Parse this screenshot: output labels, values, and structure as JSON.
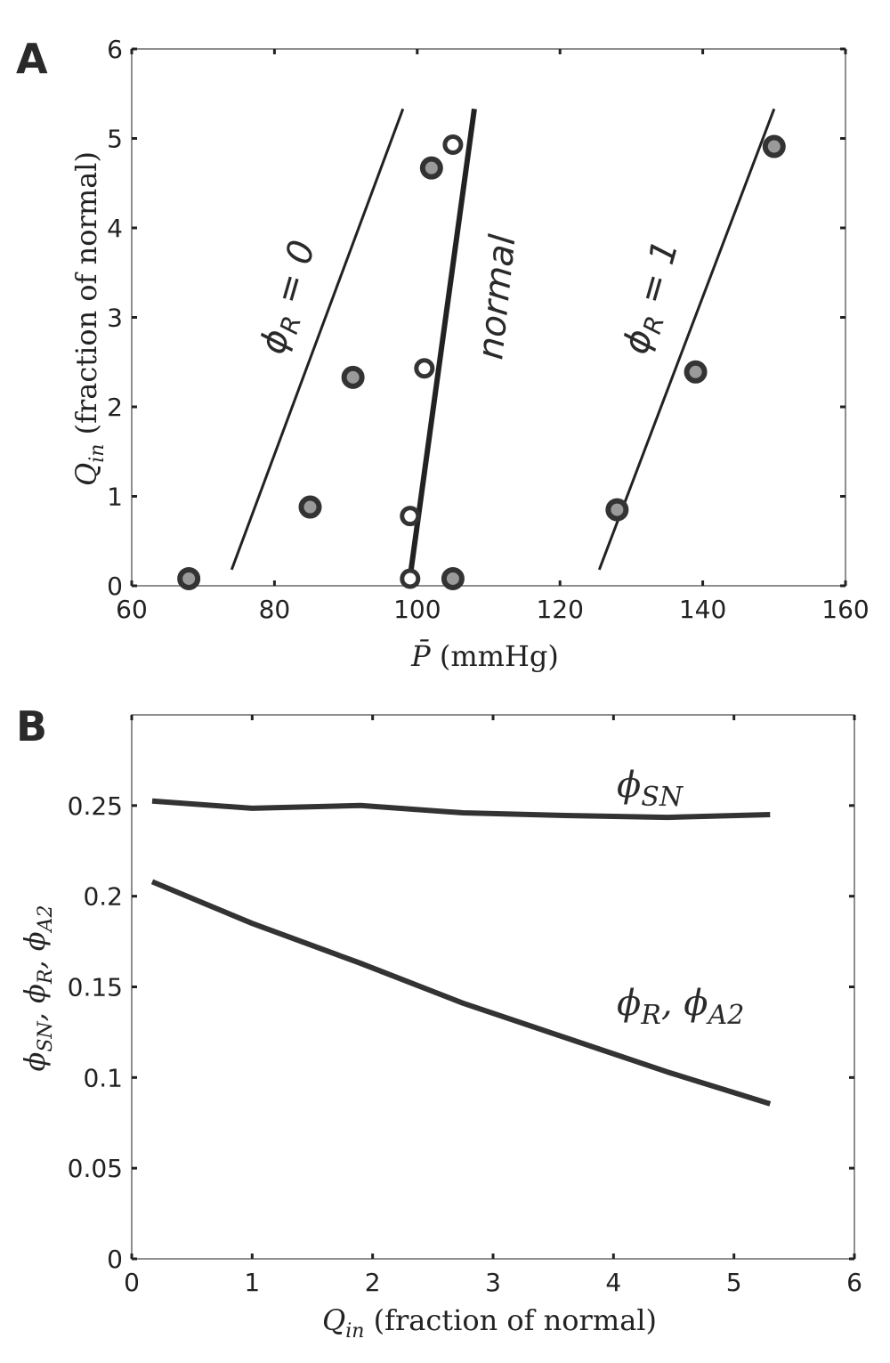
{
  "chart_data": [
    {
      "panel": "A",
      "type": "scatter",
      "xlabel": "P̄ (mmHg)",
      "ylabel": "Q_in (fraction of normal)",
      "xlim": [
        60,
        160
      ],
      "ylim": [
        0,
        6
      ],
      "xticks": [
        60,
        80,
        100,
        120,
        140,
        160
      ],
      "yticks": [
        0,
        1,
        2,
        3,
        4,
        5,
        6
      ],
      "grid": false,
      "lines": [
        {
          "name": "ϕR = 0",
          "style": "thin",
          "points": [
            [
              74,
              0.18
            ],
            [
              98,
              5.33
            ]
          ]
        },
        {
          "name": "normal",
          "style": "thick",
          "points": [
            [
              99,
              0.1
            ],
            [
              108,
              5.33
            ]
          ]
        },
        {
          "name": "ϕR = 1",
          "style": "thin",
          "points": [
            [
              125.5,
              0.18
            ],
            [
              150,
              5.33
            ]
          ]
        }
      ],
      "points_filled": [
        {
          "x": 68,
          "y": 0.08
        },
        {
          "x": 85,
          "y": 0.88
        },
        {
          "x": 91,
          "y": 2.33
        },
        {
          "x": 105,
          "y": 0.08
        },
        {
          "x": 102,
          "y": 4.67
        },
        {
          "x": 128,
          "y": 0.85
        },
        {
          "x": 139,
          "y": 2.39
        },
        {
          "x": 150,
          "y": 4.91
        }
      ],
      "points_open": [
        {
          "x": 99,
          "y": 0.08
        },
        {
          "x": 99,
          "y": 0.78
        },
        {
          "x": 101,
          "y": 2.43
        },
        {
          "x": 105,
          "y": 4.93
        }
      ]
    },
    {
      "panel": "B",
      "type": "line",
      "xlabel": "Q_in (fraction of normal)",
      "ylabel": "ϕSN, ϕR, ϕA2",
      "xlim": [
        0,
        6
      ],
      "ylim": [
        0,
        0.3
      ],
      "xticks": [
        0,
        1,
        2,
        3,
        4,
        5,
        6
      ],
      "yticks": [
        0,
        0.05,
        0.1,
        0.15,
        0.2,
        0.25
      ],
      "grid": false,
      "series": [
        {
          "name": "ϕSN",
          "x": [
            0.17,
            1.0,
            1.9,
            2.75,
            3.6,
            4.45,
            5.3
          ],
          "values": [
            0.2525,
            0.2485,
            0.25,
            0.246,
            0.2445,
            0.2435,
            0.245
          ]
        },
        {
          "name": "ϕR, ϕA2",
          "x": [
            0.17,
            1.0,
            1.9,
            2.75,
            3.6,
            4.45,
            5.3
          ],
          "values": [
            0.208,
            0.185,
            0.163,
            0.141,
            0.122,
            0.103,
            0.0855
          ]
        }
      ]
    }
  ]
}
